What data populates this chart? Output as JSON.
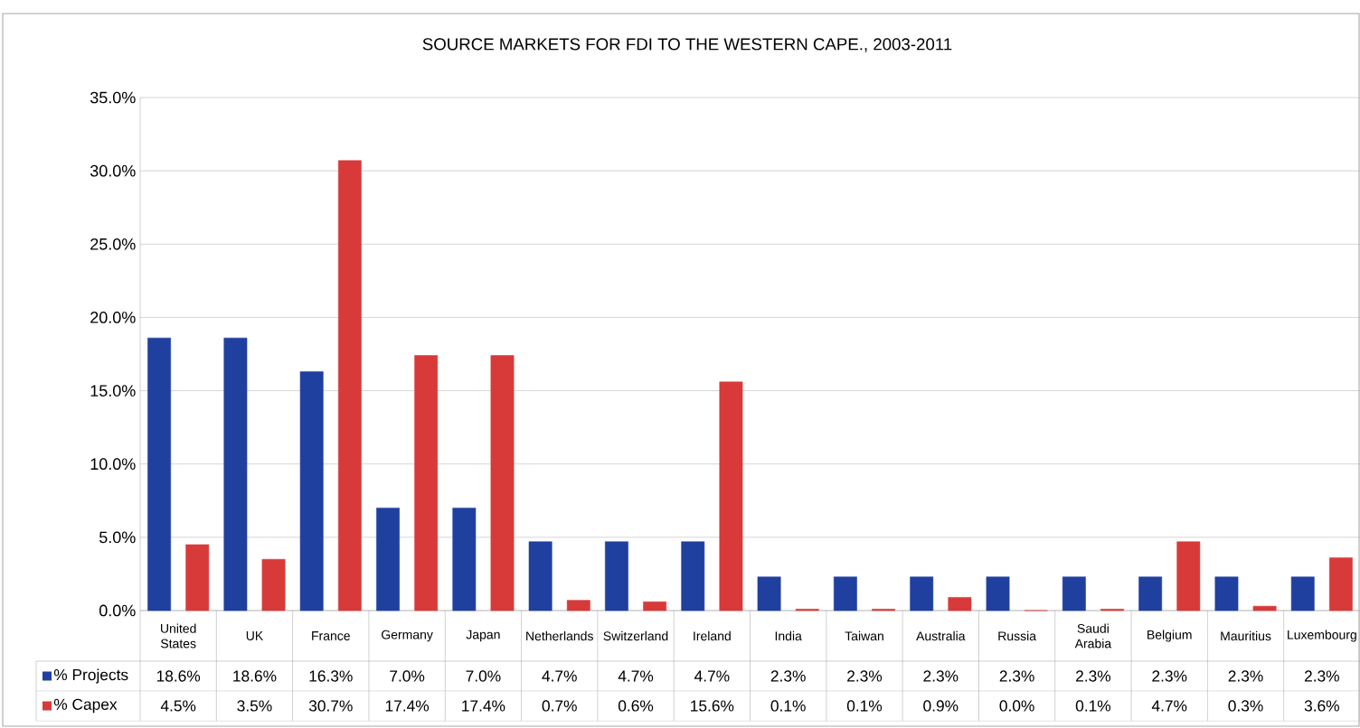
{
  "chart_data": {
    "type": "bar",
    "title": "SOURCE MARKETS FOR FDI TO THE WESTERN CAPE., 2003-2011",
    "categories": [
      "United States",
      "UK",
      "France",
      "Germany",
      "Japan",
      "Netherlands",
      "Switzerland",
      "Ireland",
      "India",
      "Taiwan",
      "Australia",
      "Russia",
      "Saudi Arabia",
      "Belgium",
      "Mauritius",
      "Luxembourg"
    ],
    "series": [
      {
        "name": "% Projects",
        "color": "#2040a0",
        "values": [
          18.6,
          18.6,
          16.3,
          7.0,
          7.0,
          4.7,
          4.7,
          4.7,
          2.3,
          2.3,
          2.3,
          2.3,
          2.3,
          2.3,
          2.3,
          2.3
        ],
        "value_labels": [
          "18.6%",
          "18.6%",
          "16.3%",
          "7.0%",
          "7.0%",
          "4.7%",
          "4.7%",
          "4.7%",
          "2.3%",
          "2.3%",
          "2.3%",
          "2.3%",
          "2.3%",
          "2.3%",
          "2.3%",
          "2.3%"
        ]
      },
      {
        "name": "% Capex",
        "color": "#d83a3a",
        "values": [
          4.5,
          3.5,
          30.7,
          17.4,
          17.4,
          0.7,
          0.6,
          15.6,
          0.1,
          0.1,
          0.9,
          0.0,
          0.1,
          4.7,
          0.3,
          3.6
        ],
        "value_labels": [
          "4.5%",
          "3.5%",
          "30.7%",
          "17.4%",
          "17.4%",
          "0.7%",
          "0.6%",
          "15.6%",
          "0.1%",
          "0.1%",
          "0.9%",
          "0.0%",
          "0.1%",
          "4.7%",
          "0.3%",
          "3.6%"
        ]
      }
    ],
    "ylim": [
      0,
      35
    ],
    "yticks": [
      {
        "value": 0,
        "label": "0.0%"
      },
      {
        "value": 5,
        "label": "5.0%"
      },
      {
        "value": 10,
        "label": "10.0%"
      },
      {
        "value": 15,
        "label": "15.0%"
      },
      {
        "value": 20,
        "label": "20.0%"
      },
      {
        "value": 25,
        "label": "25.0%"
      },
      {
        "value": 30,
        "label": "30.0%"
      },
      {
        "value": 35,
        "label": "35.0%"
      }
    ],
    "grid": "y",
    "legend": "bottom"
  }
}
